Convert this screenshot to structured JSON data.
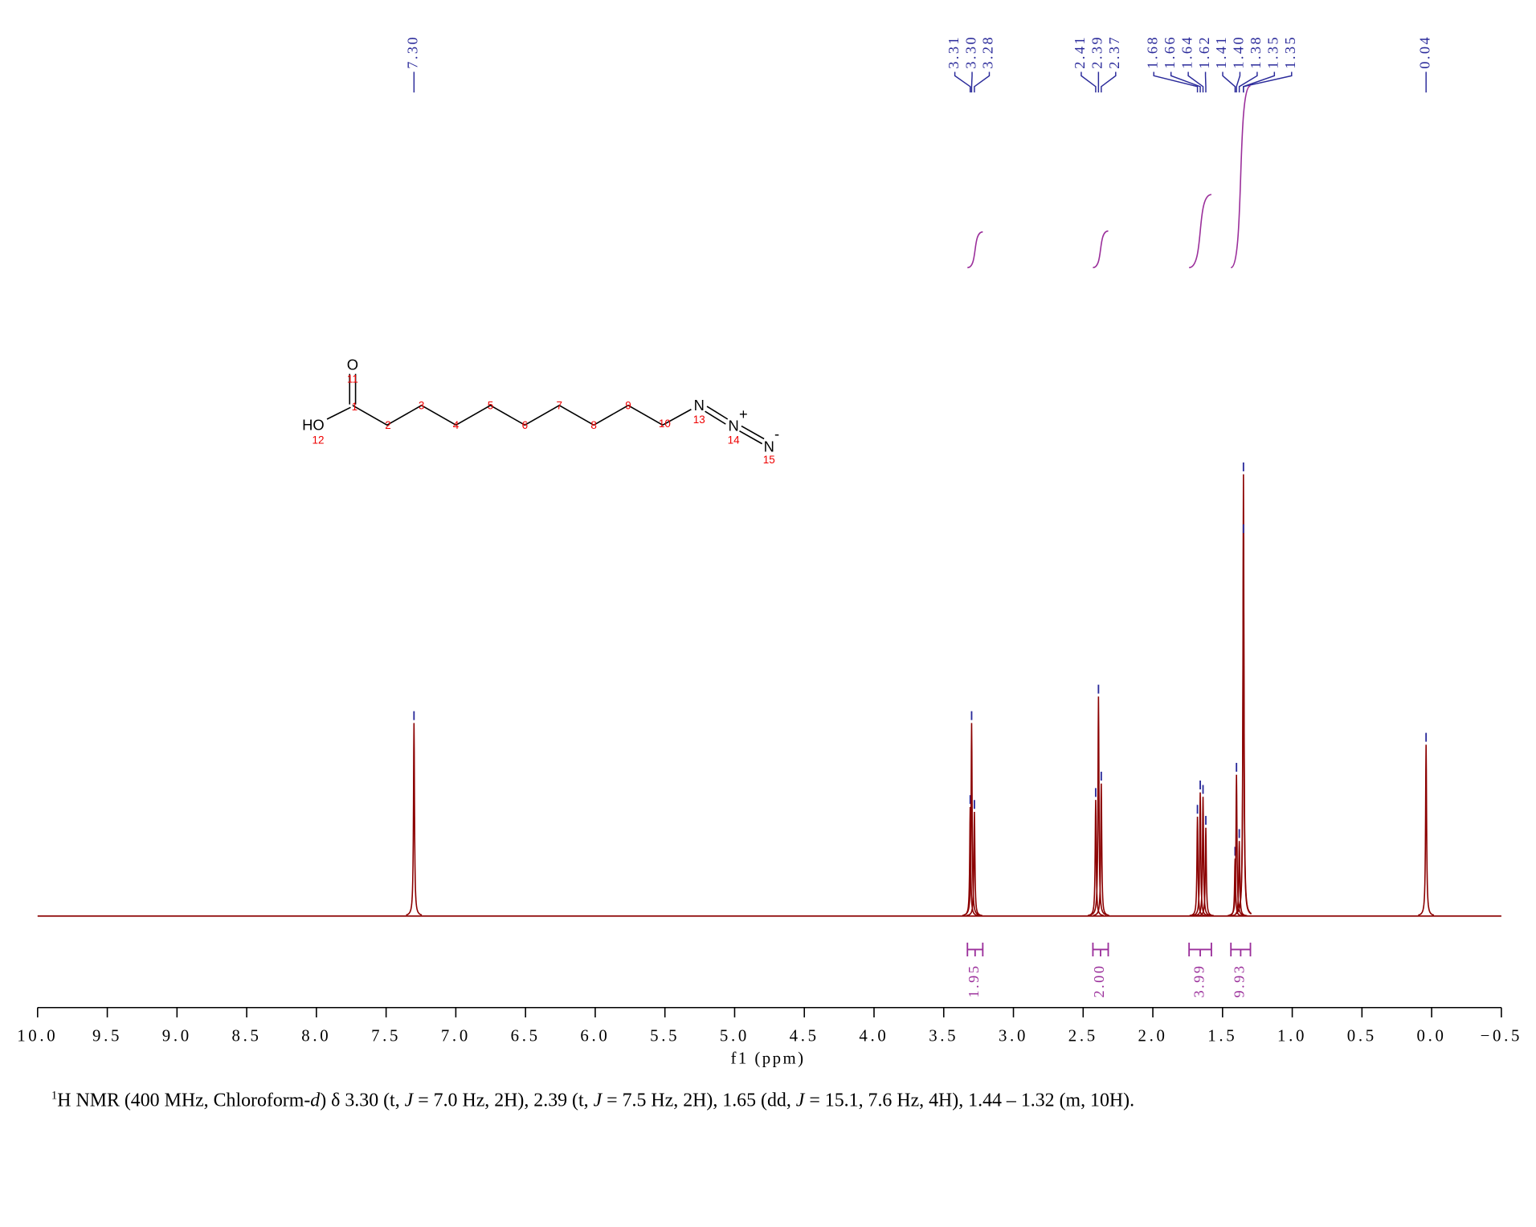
{
  "chart_data": {
    "type": "nmr",
    "xlabel": "f1 (ppm)",
    "xlim": [
      10,
      -0.5
    ],
    "xticks": [
      {
        "value": 10,
        "label": "10.0"
      },
      {
        "value": 9.5,
        "label": "9.5"
      },
      {
        "value": 9,
        "label": "9.0"
      },
      {
        "value": 8.5,
        "label": "8.5"
      },
      {
        "value": 8,
        "label": "8.0"
      },
      {
        "value": 7.5,
        "label": "7.5"
      },
      {
        "value": 7,
        "label": "7.0"
      },
      {
        "value": 6.5,
        "label": "6.5"
      },
      {
        "value": 6,
        "label": "6.0"
      },
      {
        "value": 5.5,
        "label": "5.5"
      },
      {
        "value": 5,
        "label": "5.0"
      },
      {
        "value": 4.5,
        "label": "4.5"
      },
      {
        "value": 4,
        "label": "4.0"
      },
      {
        "value": 3.5,
        "label": "3.5"
      },
      {
        "value": 3,
        "label": "3.0"
      },
      {
        "value": 2.5,
        "label": "2.5"
      },
      {
        "value": 2,
        "label": "2.0"
      },
      {
        "value": 1.5,
        "label": "1.5"
      },
      {
        "value": 1,
        "label": "1.0"
      },
      {
        "value": 0.5,
        "label": "0.5"
      },
      {
        "value": 0,
        "label": "0.0"
      },
      {
        "value": -0.5,
        "label": "−0.5"
      }
    ],
    "peaks": {
      "shifts": [
        7.3,
        3.31,
        3.3,
        3.28,
        2.41,
        2.39,
        2.37,
        1.68,
        1.66,
        1.64,
        1.62,
        1.41,
        1.4,
        1.38,
        1.35,
        1.35,
        0.04
      ],
      "labels": [
        "7.30",
        "3.31",
        "3.30",
        "3.28",
        "2.41",
        "2.39",
        "2.37",
        "1.68",
        "1.66",
        "1.64",
        "1.62",
        "1.41",
        "1.40",
        "1.38",
        "1.35",
        "1.35",
        "0.04"
      ],
      "heights": [
        43.7,
        24.7,
        43.7,
        23.6,
        26.3,
        49.7,
        30,
        22.5,
        28,
        27,
        20,
        13,
        32,
        17,
        100,
        86,
        38.8
      ]
    },
    "integrals": {
      "ranges": [
        [
          3.33,
          3.22
        ],
        [
          2.43,
          2.32
        ],
        [
          1.74,
          1.58
        ],
        [
          1.44,
          1.3
        ]
      ],
      "values": [
        1.95,
        2,
        3.99,
        9.93
      ],
      "value_labels": [
        "1.95",
        "2.00",
        "3.99",
        "9.93"
      ]
    },
    "line_color": "#8b0000",
    "label_color": "#2a2a9a",
    "integral_color": "#9b2f9b"
  },
  "structure": {
    "atoms": [
      "O",
      "HO",
      "N",
      "N",
      "N"
    ],
    "charges": [
      "+",
      "-"
    ],
    "numbers": [
      "1",
      "2",
      "3",
      "4",
      "5",
      "6",
      "7",
      "8",
      "9",
      "10",
      "11",
      "12",
      "13",
      "14",
      "15"
    ]
  },
  "caption": [
    "1",
    "H NMR (400 MHz, Chloroform-",
    "d",
    ") δ 3.30 (t, ",
    "J",
    " = 7.0 Hz, 2H), 2.39 (t, ",
    "J",
    " = 7.5 Hz, 2H), 1.65 (dd, ",
    "J",
    " = 15.1, 7.6 Hz, 4H), 1.44 – 1.32 (m, 10H)."
  ]
}
